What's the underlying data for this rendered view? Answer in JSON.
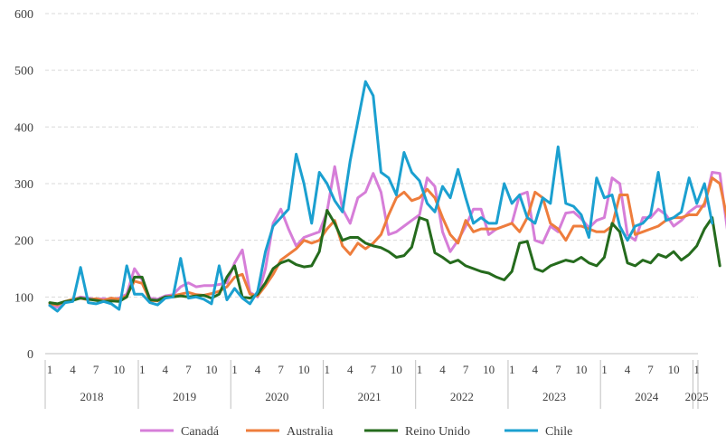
{
  "chart_data": {
    "type": "line",
    "title": "",
    "xlabel": "",
    "ylabel": "",
    "ylim": [
      0,
      600
    ],
    "yticks": [
      0,
      100,
      200,
      300,
      400,
      500,
      600
    ],
    "grid": "horizontal dashed",
    "legend_position": "bottom",
    "x_month_ticks": [
      "1",
      "4",
      "7",
      "10"
    ],
    "years": [
      "2018",
      "2019",
      "2020",
      "2021",
      "2022",
      "2023",
      "2024",
      "2025"
    ],
    "x_start": "2018-01",
    "series": [
      {
        "name": "Canadá",
        "color": "#d67ed8",
        "values": [
          85,
          82,
          90,
          95,
          100,
          98,
          96,
          97,
          95,
          98,
          105,
          150,
          130,
          98,
          96,
          102,
          104,
          118,
          125,
          118,
          120,
          120,
          122,
          125,
          160,
          183,
          108,
          100,
          150,
          230,
          255,
          220,
          190,
          205,
          210,
          215,
          250,
          330,
          255,
          230,
          275,
          285,
          318,
          285,
          210,
          215,
          225,
          235,
          245,
          310,
          295,
          215,
          180,
          200,
          225,
          255,
          255,
          210,
          220,
          225,
          230,
          280,
          285,
          200,
          195,
          225,
          215,
          248,
          250,
          238,
          222,
          235,
          240,
          310,
          300,
          210,
          200,
          240,
          240,
          255,
          245,
          225,
          235,
          250,
          260,
          260,
          320,
          318,
          215
        ]
      },
      {
        "name": "Australia",
        "color": "#ee7d3c",
        "values": [
          88,
          86,
          92,
          96,
          98,
          95,
          97,
          94,
          98,
          96,
          102,
          128,
          124,
          94,
          93,
          100,
          102,
          105,
          108,
          104,
          103,
          106,
          110,
          118,
          135,
          140,
          105,
          102,
          120,
          140,
          165,
          175,
          185,
          200,
          195,
          200,
          220,
          235,
          190,
          175,
          195,
          185,
          195,
          210,
          245,
          275,
          285,
          270,
          275,
          290,
          275,
          240,
          210,
          195,
          235,
          215,
          220,
          220,
          220,
          225,
          230,
          215,
          240,
          285,
          275,
          230,
          220,
          200,
          225,
          225,
          220,
          215,
          215,
          225,
          280,
          280,
          210,
          215,
          220,
          225,
          235,
          240,
          240,
          245,
          245,
          265,
          310,
          300,
          235
        ]
      },
      {
        "name": "Reino Unido",
        "color": "#256b1d",
        "values": [
          90,
          88,
          92,
          94,
          98,
          96,
          94,
          92,
          93,
          92,
          100,
          135,
          135,
          95,
          94,
          100,
          100,
          102,
          100,
          102,
          103,
          98,
          105,
          135,
          155,
          100,
          98,
          105,
          125,
          150,
          160,
          165,
          157,
          153,
          155,
          180,
          253,
          230,
          200,
          205,
          205,
          195,
          190,
          187,
          180,
          170,
          173,
          188,
          240,
          235,
          178,
          170,
          160,
          165,
          155,
          150,
          145,
          142,
          135,
          130,
          145,
          195,
          198,
          150,
          145,
          155,
          160,
          165,
          162,
          170,
          160,
          155,
          170,
          230,
          215,
          160,
          155,
          165,
          160,
          175,
          170,
          180,
          165,
          175,
          190,
          220,
          240,
          155
        ]
      },
      {
        "name": "Chile",
        "color": "#1ba0d0",
        "values": [
          85,
          75,
          90,
          92,
          152,
          90,
          88,
          92,
          88,
          78,
          155,
          105,
          105,
          90,
          86,
          98,
          100,
          168,
          98,
          100,
          96,
          88,
          155,
          95,
          115,
          98,
          88,
          110,
          180,
          225,
          240,
          255,
          352,
          300,
          230,
          320,
          300,
          270,
          250,
          340,
          410,
          480,
          455,
          320,
          310,
          280,
          355,
          320,
          305,
          265,
          250,
          295,
          275,
          325,
          275,
          230,
          240,
          230,
          230,
          300,
          265,
          280,
          240,
          230,
          275,
          265,
          365,
          265,
          260,
          245,
          205,
          310,
          275,
          280,
          225,
          200,
          225,
          230,
          245,
          320,
          235,
          240,
          250,
          310,
          265,
          300,
          230
        ]
      }
    ]
  }
}
